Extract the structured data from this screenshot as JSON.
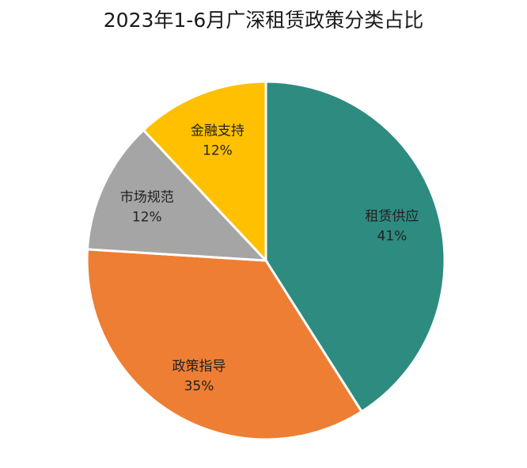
{
  "chart_data": {
    "type": "pie",
    "title": "2023年1-6月广深租赁政策分类占比",
    "slices": [
      {
        "label": "租赁供应",
        "value": 41,
        "value_label": "41%",
        "color": "#2e8b80"
      },
      {
        "label": "政策指导",
        "value": 35,
        "value_label": "35%",
        "color": "#ee7e33"
      },
      {
        "label": "市场规范",
        "value": 12,
        "value_label": "12%",
        "color": "#a5a5a5"
      },
      {
        "label": "金融支持",
        "value": 12,
        "value_label": "12%",
        "color": "#fec000"
      }
    ]
  }
}
